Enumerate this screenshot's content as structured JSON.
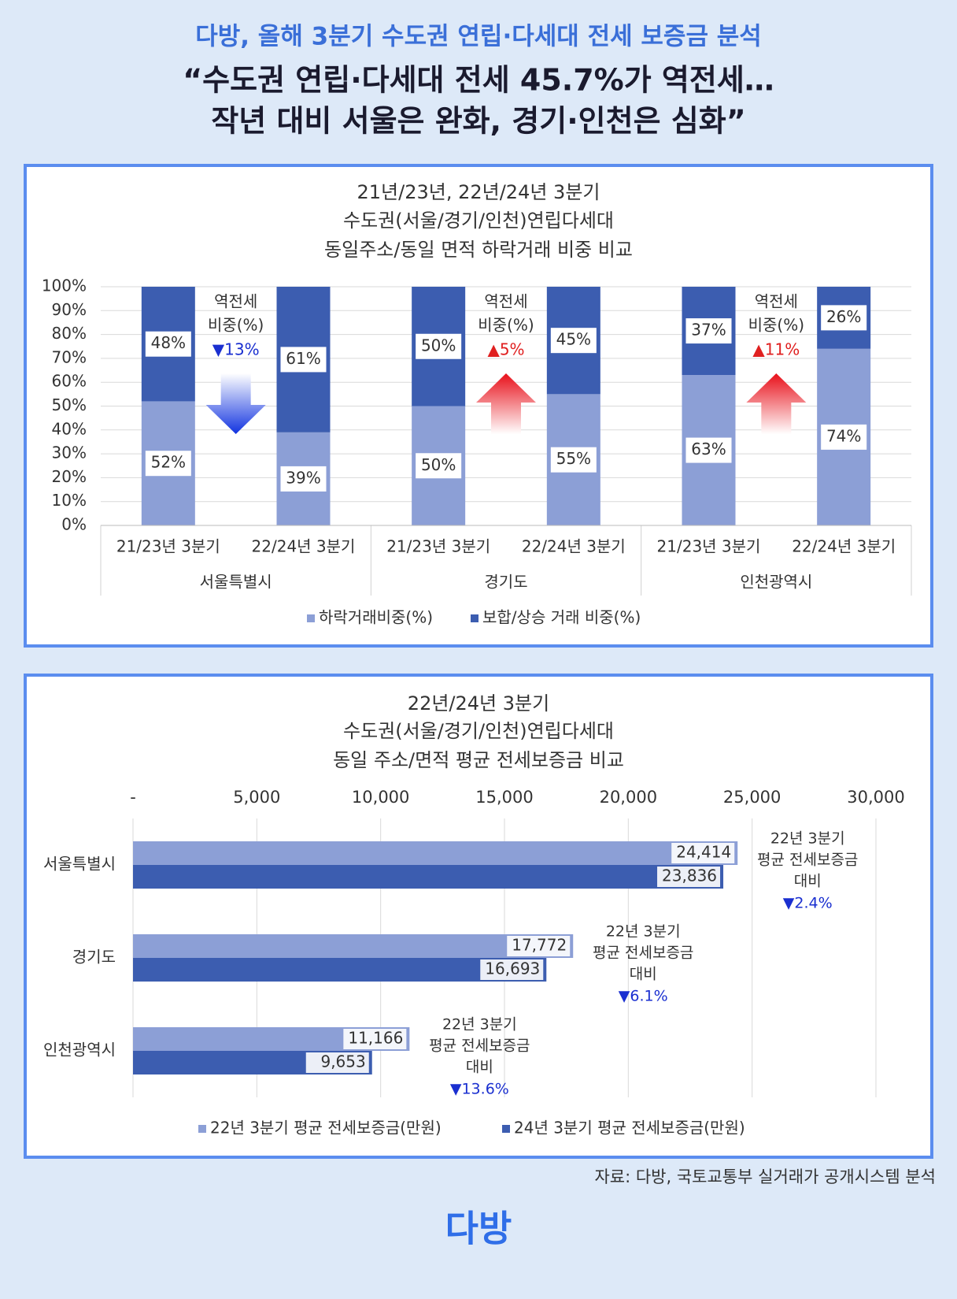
{
  "header": {
    "subtitle": "다방, 올해 3분기 수도권 연립·다세대 전세 보증금 분석",
    "title": [
      "“수도권 연립·다세대 전세 45.7%가 역전세…",
      "작년 대비 서울은 완화, 경기·인천은 심화”"
    ]
  },
  "chart_data": [
    {
      "type": "stacked_bar",
      "title": [
        "21년/23년, 22년/24년 3분기",
        "수도권(서울/경기/인천)연립다세대",
        "동일주소/동일 면적 하락거래 비중 비교"
      ],
      "categories": [
        "21/23년 3분기",
        "22/24년 3분기",
        "21/23년 3분기",
        "22/24년 3분기",
        "21/23년 3분기",
        "22/24년 3분기"
      ],
      "groups": [
        "서울특별시",
        "경기도",
        "인천광역시"
      ],
      "series": [
        {
          "name": "하락거래비중(%)",
          "color": "#8c9fd6",
          "values": [
            52,
            39,
            50,
            55,
            63,
            74
          ],
          "value_labels": [
            "52%",
            "39%",
            "50%",
            "55%",
            "63%",
            "74%"
          ]
        },
        {
          "name": "보합/상승 거래 비중(%)",
          "color": "#3c5db0",
          "values": [
            48,
            61,
            50,
            45,
            37,
            26
          ],
          "value_labels": [
            "48%",
            "61%",
            "50%",
            "45%",
            "37%",
            "26%"
          ]
        }
      ],
      "ylim": [
        0,
        100
      ],
      "yticks": [
        {
          "value": 0,
          "label": "0%"
        },
        {
          "value": 10,
          "label": "10%"
        },
        {
          "value": 20,
          "label": "20%"
        },
        {
          "value": 30,
          "label": "30%"
        },
        {
          "value": 40,
          "label": "40%"
        },
        {
          "value": 50,
          "label": "50%"
        },
        {
          "value": 60,
          "label": "60%"
        },
        {
          "value": 70,
          "label": "70%"
        },
        {
          "value": 80,
          "label": "80%"
        },
        {
          "value": 90,
          "label": "90%"
        },
        {
          "value": 100,
          "label": "100%"
        }
      ],
      "grid": true,
      "legend": "bottom",
      "annotations": [
        {
          "lines": [
            "역전세",
            "비중(%)"
          ],
          "change": "▼13%",
          "direction": "down"
        },
        {
          "lines": [
            "역전세",
            "비중(%)"
          ],
          "change": "▲5%",
          "direction": "up"
        },
        {
          "lines": [
            "역전세",
            "비중(%)"
          ],
          "change": "▲11%",
          "direction": "up"
        }
      ]
    },
    {
      "type": "hbar",
      "title": [
        "22년/24년 3분기",
        "수도권(서울/경기/인천)연립다세대",
        "동일 주소/면적 평균 전세보증금 비교"
      ],
      "categories": [
        "서울특별시",
        "경기도",
        "인천광역시"
      ],
      "series": [
        {
          "name": "22년 3분기 평균 전세보증금(만원)",
          "color": "#8c9fd6",
          "values": [
            24414,
            17772,
            11166
          ],
          "value_labels": [
            "24,414",
            "17,772",
            "11,166"
          ]
        },
        {
          "name": "24년 3분기 평균 전세보증금(만원)",
          "color": "#3c5db0",
          "values": [
            23836,
            16693,
            9653
          ],
          "value_labels": [
            "23,836",
            "16,693",
            "9,653"
          ]
        }
      ],
      "xlim": [
        0,
        30000
      ],
      "xticks": [
        {
          "value": 0,
          "label": "-"
        },
        {
          "value": 5000,
          "label": "5,000"
        },
        {
          "value": 10000,
          "label": "10,000"
        },
        {
          "value": 15000,
          "label": "15,000"
        },
        {
          "value": 20000,
          "label": "20,000"
        },
        {
          "value": 25000,
          "label": "25,000"
        },
        {
          "value": 30000,
          "label": "30,000"
        }
      ],
      "grid": true,
      "legend": "bottom",
      "annotations": [
        {
          "lines": [
            "22년 3분기",
            "평균 전세보증금",
            "대비"
          ],
          "change": "▼2.4%",
          "direction": "down"
        },
        {
          "lines": [
            "22년 3분기",
            "평균 전세보증금",
            "대비"
          ],
          "change": "▼6.1%",
          "direction": "down"
        },
        {
          "lines": [
            "22년 3분기",
            "평균 전세보증금",
            "대비"
          ],
          "change": "▼13.6%",
          "direction": "down"
        }
      ]
    }
  ],
  "source": "자료: 다방, 국토교통부 실거래가 공개시스템 분석",
  "logo": "다방"
}
